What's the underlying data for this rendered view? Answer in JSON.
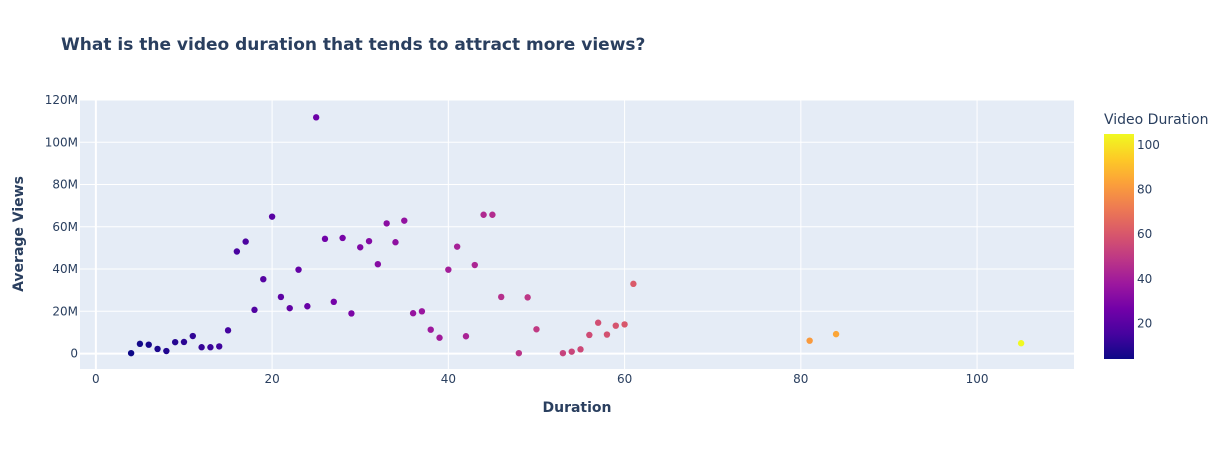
{
  "chart_data": {
    "type": "scatter",
    "title": "What is the video duration that tends to attract more views?",
    "xlabel": "Duration",
    "ylabel": "Average Views",
    "xlim": [
      -1.8,
      111
    ],
    "ylim": [
      -7.3,
      120
    ],
    "x_ticks": [
      0,
      20,
      40,
      60,
      80,
      100
    ],
    "x_tick_labels": [
      "0",
      "20",
      "40",
      "60",
      "80",
      "100"
    ],
    "y_ticks": [
      0,
      20,
      40,
      60,
      80,
      100,
      120
    ],
    "y_tick_labels": [
      "0",
      "20M",
      "40M",
      "60M",
      "80M",
      "100M",
      "120M"
    ],
    "grid": true,
    "plot_background": "#e5ecf6",
    "colorbar": {
      "title": "Video Duration",
      "range": [
        4,
        105
      ],
      "ticks": [
        20,
        40,
        60,
        80,
        100
      ],
      "tick_labels": [
        "20",
        "40",
        "60",
        "80",
        "100"
      ],
      "colorscale": [
        "#0d0887",
        "#46039f",
        "#7201a8",
        "#9c179e",
        "#bd3786",
        "#d8576b",
        "#ed7953",
        "#fb9f3a",
        "#fdca26",
        "#f0f921"
      ]
    },
    "points": {
      "x": [
        4,
        5,
        6,
        7,
        8,
        9,
        10,
        11,
        12,
        13,
        14,
        15,
        16,
        17,
        18,
        19,
        20,
        21,
        22,
        23,
        24,
        25,
        26,
        27,
        28,
        29,
        30,
        31,
        32,
        33,
        34,
        35,
        36,
        37,
        38,
        39,
        40,
        41,
        42,
        43,
        44,
        45,
        46,
        48,
        49,
        50,
        53,
        54,
        55,
        56,
        57,
        58,
        59,
        60,
        61,
        81,
        84,
        105
      ],
      "y": [
        0.2,
        4.6,
        4.2,
        2.2,
        1.2,
        5.4,
        5.5,
        8.3,
        3.0,
        3.0,
        3.4,
        11.0,
        48.3,
        53.0,
        20.7,
        35.2,
        64.8,
        26.8,
        21.5,
        39.7,
        22.4,
        111.8,
        54.3,
        24.5,
        54.7,
        19.0,
        50.3,
        53.2,
        42.3,
        61.6,
        52.7,
        62.9,
        19.1,
        20.0,
        11.3,
        7.5,
        39.7,
        50.6,
        8.2,
        41.9,
        65.7,
        65.7,
        26.8,
        0.2,
        26.6,
        11.5,
        0.2,
        0.9,
        2.0,
        8.8,
        14.6,
        9.0,
        13.2,
        13.8,
        33.0,
        6.1,
        9.2,
        4.9
      ],
      "color_values": [
        4,
        5,
        6,
        7,
        8,
        9,
        10,
        11,
        12,
        13,
        14,
        15,
        16,
        17,
        18,
        19,
        20,
        21,
        22,
        23,
        24,
        25,
        26,
        27,
        28,
        29,
        30,
        31,
        32,
        33,
        34,
        35,
        36,
        37,
        38,
        39,
        40,
        41,
        42,
        43,
        44,
        45,
        46,
        48,
        49,
        50,
        53,
        54,
        55,
        56,
        57,
        58,
        59,
        60,
        61,
        81,
        84,
        105
      ]
    }
  }
}
